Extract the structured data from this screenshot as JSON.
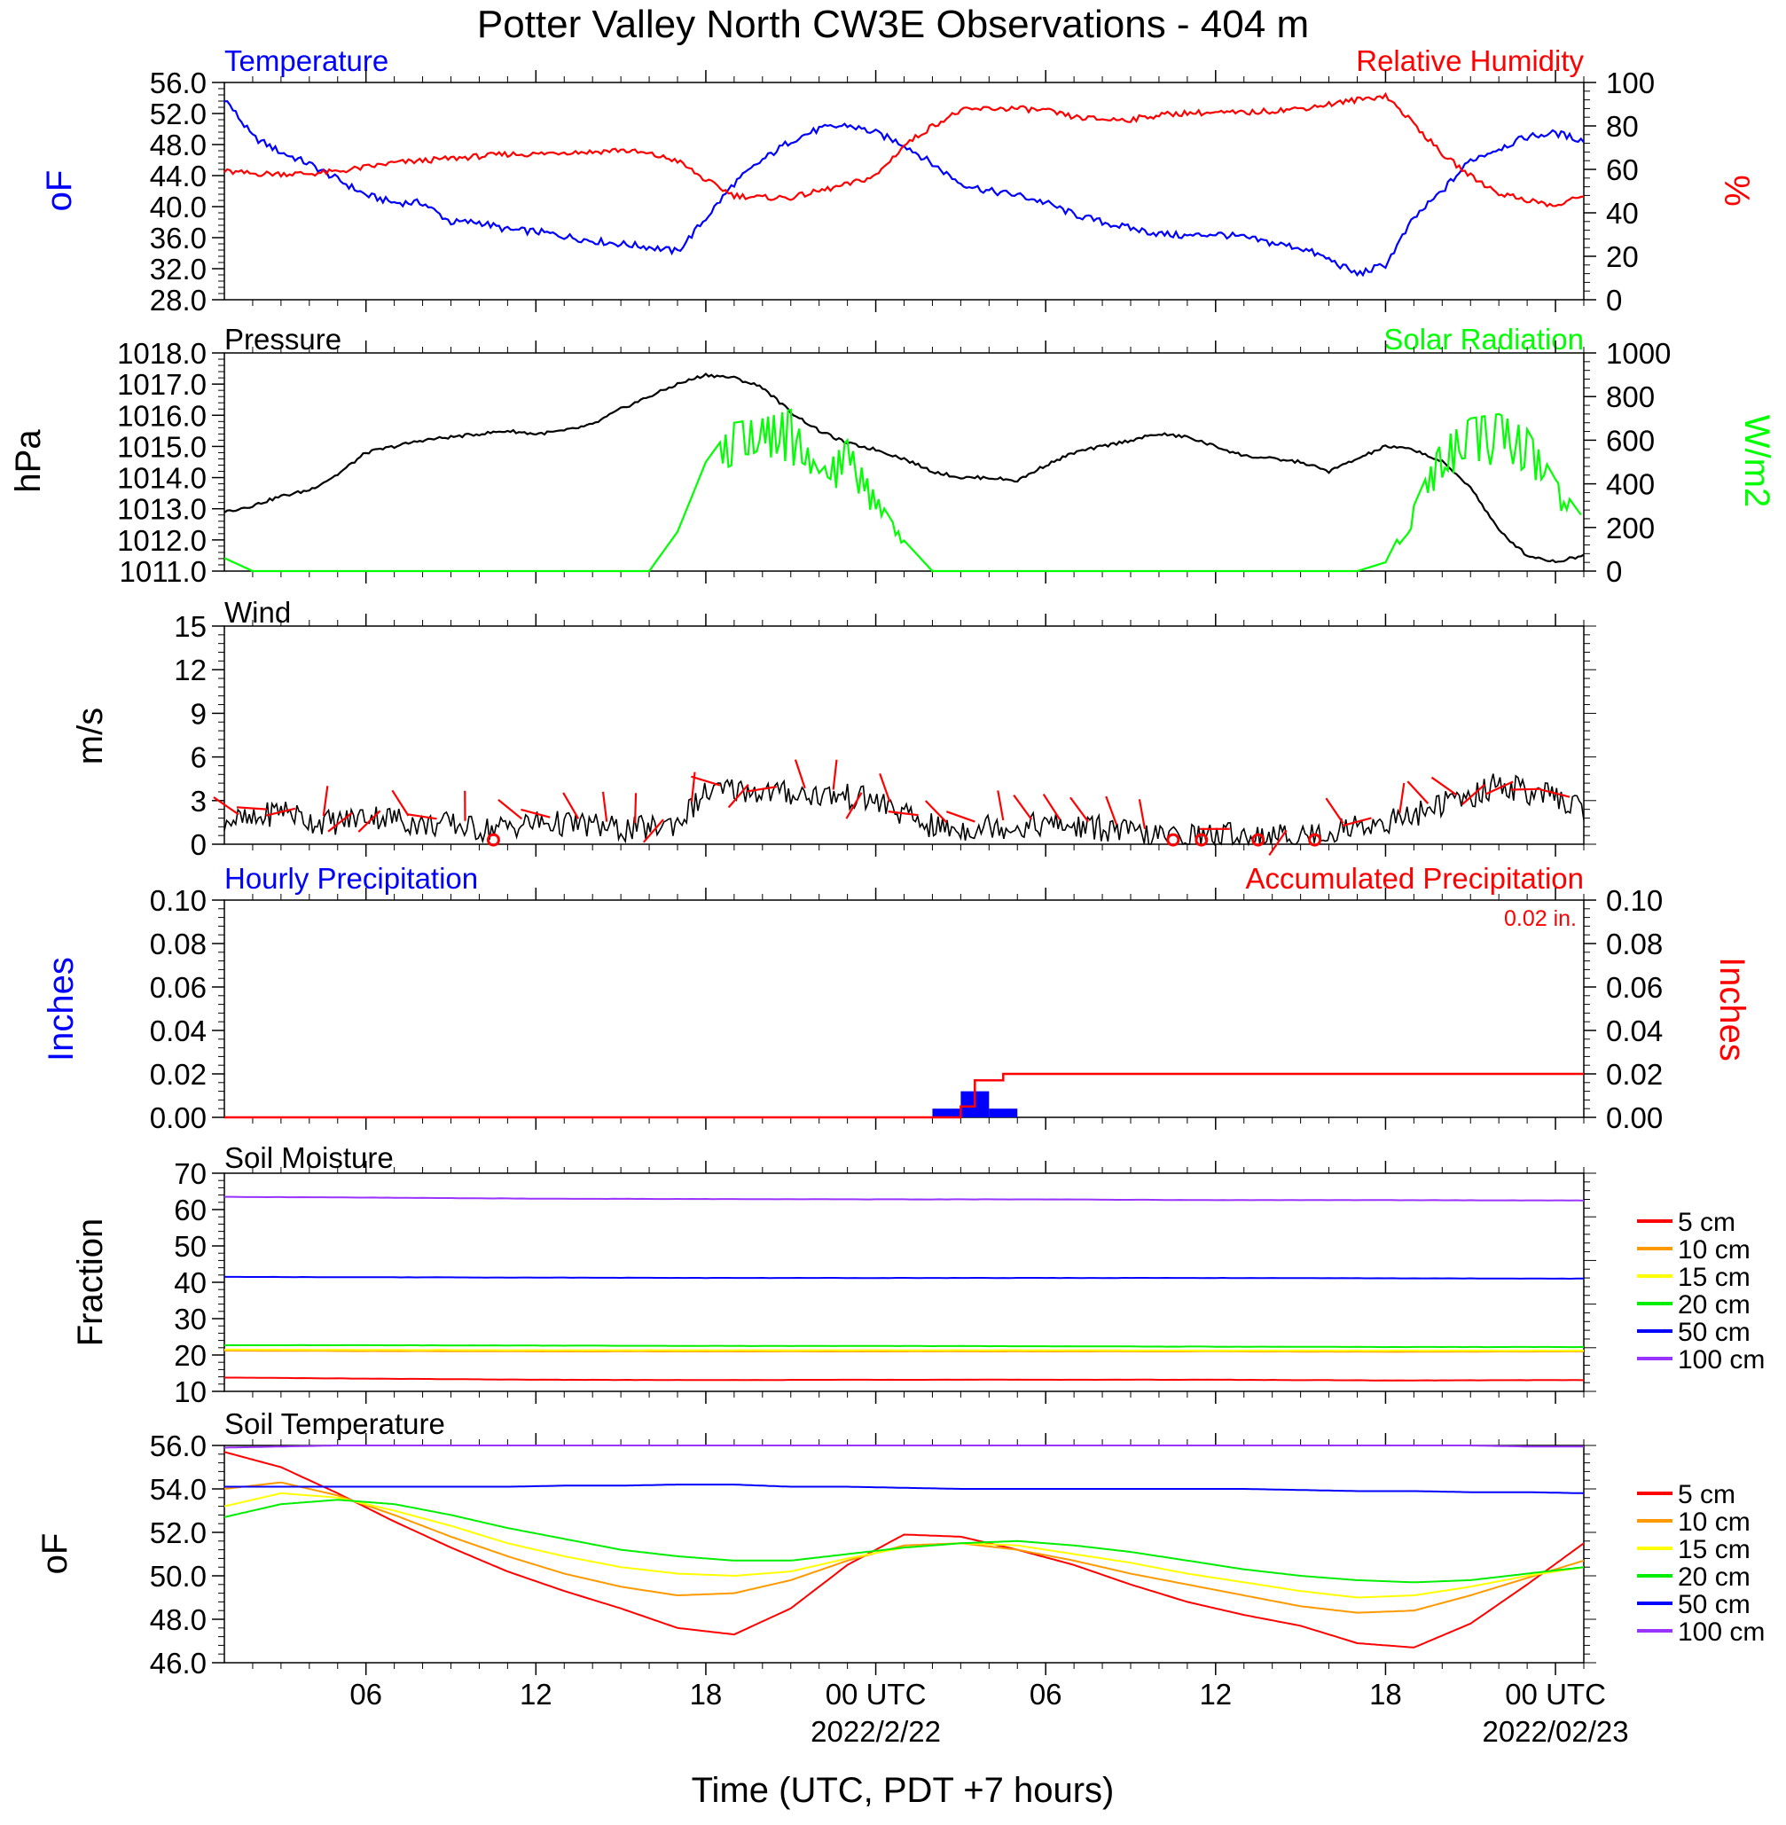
{
  "title": "Potter Valley North CW3E Observations - 404 m",
  "x_axis": {
    "label": "Time (UTC, PDT +7 hours)",
    "ticks": [
      "06",
      "12",
      "18",
      "00 UTC",
      "06",
      "12",
      "18",
      "00 UTC"
    ],
    "tick_hours": [
      6,
      12,
      18,
      24,
      30,
      36,
      42,
      48
    ],
    "dates": [
      "2022/2/22",
      "2022/02/23"
    ],
    "date_hours": [
      24,
      48
    ],
    "range_hours": [
      1,
      49
    ]
  },
  "panels": {
    "temp_rh": {
      "left_title": "Temperature",
      "right_title": "Relative Humidity",
      "left_unit": "oF",
      "right_unit": "%",
      "left_ticks": [
        "56.0",
        "52.0",
        "48.0",
        "44.0",
        "40.0",
        "36.0",
        "32.0",
        "28.0"
      ],
      "right_ticks": [
        "100",
        "80",
        "60",
        "40",
        "20",
        "0"
      ]
    },
    "pressure_solar": {
      "left_title": "Pressure",
      "right_title": "Solar Radiation",
      "left_unit": "hPa",
      "right_unit": "W/m2",
      "left_ticks": [
        "1018.0",
        "1017.0",
        "1016.0",
        "1015.0",
        "1014.0",
        "1013.0",
        "1012.0",
        "1011.0"
      ],
      "right_ticks": [
        "1000",
        "800",
        "600",
        "400",
        "200",
        "0"
      ]
    },
    "wind": {
      "left_title": "Wind",
      "left_unit": "m/s",
      "left_ticks": [
        "15",
        "12",
        "9",
        "6",
        "3",
        "0"
      ]
    },
    "precip": {
      "left_title": "Hourly Precipitation",
      "right_title": "Accumulated Precipitation",
      "total_label": "0.02 in.",
      "left_unit": "Inches",
      "right_unit": "Inches",
      "left_ticks": [
        "0.10",
        "0.08",
        "0.06",
        "0.04",
        "0.02",
        "0.00"
      ],
      "right_ticks": [
        "0.10",
        "0.08",
        "0.06",
        "0.04",
        "0.02",
        "0.00"
      ]
    },
    "soil_moisture": {
      "left_title": "Soil Moisture",
      "left_unit": "Fraction",
      "left_ticks": [
        "70",
        "60",
        "50",
        "40",
        "30",
        "20",
        "10"
      ],
      "legend": [
        "5 cm",
        "10 cm",
        "15 cm",
        "20 cm",
        "50 cm",
        "100 cm"
      ]
    },
    "soil_temp": {
      "left_title": "Soil Temperature",
      "left_unit": "oF",
      "left_ticks": [
        "56.0",
        "54.0",
        "52.0",
        "50.0",
        "48.0",
        "46.0"
      ],
      "legend": [
        "5 cm",
        "10 cm",
        "15 cm",
        "20 cm",
        "50 cm",
        "100 cm"
      ]
    }
  },
  "colors": {
    "temperature": "#0000ff",
    "humidity": "#ff0000",
    "pressure": "#000000",
    "solar": "#00ff00",
    "wind": "#000000",
    "barb": "#ff0000",
    "hourly_precip": "#0000ff",
    "accum_precip": "#ff0000",
    "depth_5": "#ff0000",
    "depth_10": "#ff9900",
    "depth_15": "#ffff00",
    "depth_20": "#00ee00",
    "depth_50": "#0000ff",
    "depth_100": "#9933ff"
  },
  "chart_data": [
    {
      "type": "line",
      "title": "Temperature / Relative Humidity",
      "x_hours": [
        1,
        2,
        3,
        4,
        5,
        6,
        7,
        8,
        9,
        10,
        11,
        12,
        13,
        14,
        15,
        16,
        17,
        18,
        19,
        20,
        21,
        22,
        23,
        24,
        25,
        26,
        27,
        28,
        29,
        30,
        31,
        32,
        33,
        34,
        35,
        36,
        37,
        38,
        39,
        40,
        41,
        42,
        43,
        44,
        45,
        46,
        47,
        48,
        49
      ],
      "series": [
        {
          "name": "Temperature",
          "axis": "left",
          "ylim": [
            28,
            56
          ],
          "values": [
            54,
            49,
            47,
            45.5,
            43.5,
            41.5,
            40.5,
            40.5,
            38,
            38,
            37,
            36.8,
            36.2,
            35.6,
            35.2,
            34.8,
            34.2,
            38.5,
            43,
            46,
            48.5,
            50,
            50.5,
            49.5,
            48,
            45.5,
            43,
            42,
            41.5,
            40.5,
            39,
            38,
            37.2,
            36.5,
            36.2,
            36.5,
            36,
            35.3,
            34.7,
            33.2,
            31.3,
            32.5,
            38.5,
            42,
            46,
            47.5,
            49,
            49.5,
            48.5
          ]
        },
        {
          "name": "Relative Humidity",
          "axis": "right",
          "ylim": [
            0,
            100
          ],
          "values": [
            59,
            58,
            58,
            58,
            59,
            61,
            63,
            64,
            65,
            66,
            67,
            67,
            68,
            68,
            69,
            67,
            64,
            55,
            48,
            47,
            47,
            50,
            53,
            57,
            71,
            80,
            87,
            88,
            88,
            87,
            84,
            83,
            83,
            85,
            86,
            86,
            86,
            87,
            88,
            90,
            92,
            94,
            81,
            67,
            57,
            49,
            46,
            43,
            48
          ]
        }
      ]
    },
    {
      "type": "line",
      "title": "Pressure / Solar Radiation",
      "x_hours": [
        1,
        2,
        3,
        4,
        5,
        6,
        7,
        8,
        9,
        10,
        11,
        12,
        13,
        14,
        15,
        16,
        17,
        18,
        19,
        20,
        21,
        22,
        23,
        24,
        25,
        26,
        27,
        28,
        29,
        30,
        31,
        32,
        33,
        34,
        35,
        36,
        37,
        38,
        39,
        40,
        41,
        42,
        43,
        44,
        45,
        46,
        47,
        48,
        49
      ],
      "series": [
        {
          "name": "Pressure",
          "axis": "left",
          "ylim": [
            1011,
            1018
          ],
          "values": [
            1012.9,
            1013.1,
            1013.4,
            1013.6,
            1014.1,
            1014.8,
            1015.0,
            1015.2,
            1015.3,
            1015.4,
            1015.5,
            1015.4,
            1015.5,
            1015.7,
            1016.2,
            1016.6,
            1017.0,
            1017.3,
            1017.2,
            1016.9,
            1016.1,
            1015.5,
            1015.1,
            1014.9,
            1014.6,
            1014.2,
            1014.0,
            1014.0,
            1013.9,
            1014.4,
            1014.8,
            1015.0,
            1015.2,
            1015.4,
            1015.3,
            1015.0,
            1014.7,
            1014.6,
            1014.5,
            1014.2,
            1014.6,
            1015.0,
            1014.9,
            1014.5,
            1013.7,
            1012.3,
            1011.5,
            1011.3,
            1011.5
          ]
        },
        {
          "name": "Solar Radiation",
          "axis": "right",
          "ylim": [
            0,
            1000
          ],
          "values": [
            60,
            0,
            0,
            0,
            0,
            0,
            0,
            0,
            0,
            0,
            0,
            0,
            0,
            0,
            0,
            0,
            180,
            500,
            680,
            700,
            740,
            450,
            600,
            350,
            140,
            0,
            0,
            0,
            0,
            0,
            0,
            0,
            0,
            0,
            0,
            0,
            0,
            0,
            0,
            0,
            0,
            40,
            300,
            600,
            700,
            720,
            650,
            420,
            240
          ]
        }
      ]
    },
    {
      "type": "line",
      "title": "Wind",
      "x_hours": [
        1,
        2,
        3,
        4,
        5,
        6,
        7,
        8,
        9,
        10,
        11,
        12,
        13,
        14,
        15,
        16,
        17,
        18,
        19,
        20,
        21,
        22,
        23,
        24,
        25,
        26,
        27,
        28,
        29,
        30,
        31,
        32,
        33,
        34,
        35,
        36,
        37,
        38,
        39,
        40,
        41,
        42,
        43,
        44,
        45,
        46,
        47,
        48,
        49
      ],
      "series": [
        {
          "name": "Wind",
          "axis": "left",
          "ylim": [
            0,
            15
          ],
          "values": [
            1.8,
            1.5,
            2.5,
            1.6,
            1.5,
            2.0,
            1.8,
            1.3,
            1.4,
            1.0,
            1.2,
            1.5,
            1.4,
            1.3,
            1.0,
            1.1,
            1.5,
            3.5,
            3.8,
            3.6,
            3.5,
            3.4,
            3.3,
            3.0,
            2.0,
            1.2,
            1.0,
            1.3,
            1.2,
            1.4,
            1.2,
            1.1,
            0.8,
            0.5,
            0.6,
            0.6,
            0.7,
            0.5,
            0.6,
            0.8,
            1.3,
            1.5,
            2.0,
            2.8,
            3.2,
            4.2,
            3.6,
            3.2,
            2.5
          ]
        }
      ]
    },
    {
      "type": "bar",
      "title": "Hourly / Accumulated Precipitation",
      "x_hours": [
        26,
        27,
        28
      ],
      "series": [
        {
          "name": "Hourly Precipitation",
          "axis": "left",
          "ylim": [
            0,
            0.1
          ],
          "values": [
            0.004,
            0.012,
            0.004
          ]
        },
        {
          "name": "Accumulated Precipitation",
          "axis": "right",
          "ylim": [
            0,
            0.1
          ],
          "steps_x": [
            1,
            26,
            27,
            27.5,
            28,
            28.5,
            49
          ],
          "steps_y": [
            0,
            0,
            0.005,
            0.017,
            0.017,
            0.02,
            0.02
          ]
        }
      ]
    },
    {
      "type": "line",
      "title": "Soil Moisture",
      "x_hours": [
        1,
        6,
        12,
        18,
        24,
        30,
        36,
        42,
        49
      ],
      "ylim": [
        10,
        70
      ],
      "series": [
        {
          "name": "5 cm",
          "values": [
            13.8,
            13.5,
            13.2,
            13.1,
            13.2,
            13.2,
            13.2,
            13.0,
            13.1
          ]
        },
        {
          "name": "10 cm",
          "values": [
            21.2,
            21.1,
            21.0,
            21.0,
            21.0,
            21.0,
            21.0,
            20.9,
            21.0
          ]
        },
        {
          "name": "15 cm",
          "values": [
            21.5,
            21.4,
            21.3,
            21.3,
            21.3,
            21.3,
            21.2,
            21.2,
            21.2
          ]
        },
        {
          "name": "20 cm",
          "values": [
            22.7,
            22.7,
            22.6,
            22.5,
            22.5,
            22.4,
            22.3,
            22.2,
            22.2
          ]
        },
        {
          "name": "50 cm",
          "values": [
            41.5,
            41.4,
            41.3,
            41.2,
            41.2,
            41.2,
            41.2,
            41.1,
            41.0
          ]
        },
        {
          "name": "100 cm",
          "values": [
            63.5,
            63.3,
            63.0,
            62.9,
            62.8,
            62.8,
            62.6,
            62.6,
            62.5
          ]
        }
      ]
    },
    {
      "type": "line",
      "title": "Soil Temperature",
      "x_hours": [
        1,
        3,
        5,
        7,
        9,
        11,
        13,
        15,
        17,
        19,
        21,
        23,
        25,
        27,
        29,
        31,
        33,
        35,
        37,
        39,
        41,
        43,
        45,
        47,
        49
      ],
      "ylim": [
        46,
        56
      ],
      "series": [
        {
          "name": "5 cm",
          "values": [
            55.7,
            55.0,
            53.8,
            52.5,
            51.3,
            50.2,
            49.3,
            48.5,
            47.6,
            47.3,
            48.5,
            50.5,
            51.9,
            51.8,
            51.2,
            50.5,
            49.6,
            48.8,
            48.2,
            47.7,
            46.9,
            46.7,
            47.8,
            49.6,
            51.5
          ]
        },
        {
          "name": "10 cm",
          "values": [
            54.0,
            54.3,
            53.7,
            52.8,
            51.8,
            50.9,
            50.1,
            49.5,
            49.1,
            49.2,
            49.8,
            50.7,
            51.4,
            51.5,
            51.2,
            50.7,
            50.1,
            49.6,
            49.1,
            48.6,
            48.3,
            48.4,
            49.1,
            49.9,
            50.7
          ]
        },
        {
          "name": "15 cm",
          "values": [
            53.2,
            53.8,
            53.6,
            53.0,
            52.3,
            51.5,
            50.9,
            50.4,
            50.1,
            50.0,
            50.2,
            50.8,
            51.3,
            51.5,
            51.4,
            51.0,
            50.6,
            50.1,
            49.7,
            49.3,
            49.0,
            49.1,
            49.5,
            50.0,
            50.4
          ]
        },
        {
          "name": "20 cm",
          "values": [
            52.7,
            53.3,
            53.5,
            53.3,
            52.8,
            52.2,
            51.7,
            51.2,
            50.9,
            50.7,
            50.7,
            51.0,
            51.3,
            51.5,
            51.6,
            51.4,
            51.1,
            50.7,
            50.3,
            50.0,
            49.8,
            49.7,
            49.8,
            50.1,
            50.4
          ]
        },
        {
          "name": "50 cm",
          "values": [
            54.1,
            54.1,
            54.1,
            54.1,
            54.1,
            54.1,
            54.15,
            54.15,
            54.2,
            54.2,
            54.1,
            54.1,
            54.05,
            54.0,
            54.0,
            54.0,
            54.0,
            54.0,
            54.0,
            53.95,
            53.9,
            53.9,
            53.85,
            53.85,
            53.8
          ]
        },
        {
          "name": "100 cm",
          "values": [
            55.9,
            55.95,
            56.0,
            56.0,
            56.0,
            56.0,
            56.0,
            56.0,
            56.0,
            56.0,
            56.0,
            56.0,
            56.0,
            56.0,
            56.0,
            56.0,
            56.0,
            56.0,
            56.0,
            56.0,
            56.0,
            56.0,
            56.0,
            55.95,
            55.95
          ]
        }
      ]
    }
  ]
}
